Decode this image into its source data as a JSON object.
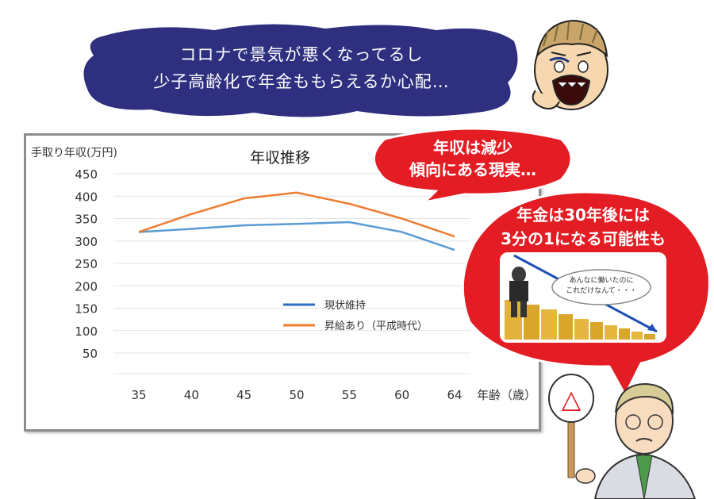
{
  "speech": {
    "line1": "コロナで景気が悪くなってるし",
    "line2": "少子高齢化で年金ももらえるか心配…"
  },
  "bubble_small": {
    "line1": "年収は減少",
    "line2": "傾向にある現実…"
  },
  "bubble_big": {
    "line1": "年金は30年後には",
    "line2": "3分の1になる可能性も"
  },
  "thought": {
    "line1": "あんなに働いたのに",
    "line2": "これだけなんて・・・"
  },
  "colors": {
    "cloud": "#2e2f7f",
    "bubble_red": "#e41c24",
    "series_blue": "#5b9bd5",
    "series_orange": "#ed7d31",
    "legend_blue": "#2f6fbf"
  },
  "sign_symbol": "△",
  "chart_data": {
    "type": "line",
    "title": "年収推移",
    "ylabel": "手取り年収(万円)",
    "xlabel": "年齢（歳）",
    "categories": [
      "35",
      "40",
      "45",
      "50",
      "55",
      "60",
      "64"
    ],
    "ylim": [
      0,
      450
    ],
    "yticks": [
      "450",
      "400",
      "350",
      "300",
      "250",
      "200",
      "150",
      "100",
      "50"
    ],
    "series": [
      {
        "name": "現状維持",
        "values": [
          320,
          327,
          335,
          338,
          342,
          320,
          280
        ]
      },
      {
        "name": "昇給あり（平成時代）",
        "values": [
          320,
          360,
          395,
          408,
          383,
          350,
          310
        ]
      }
    ],
    "legend": "center"
  }
}
